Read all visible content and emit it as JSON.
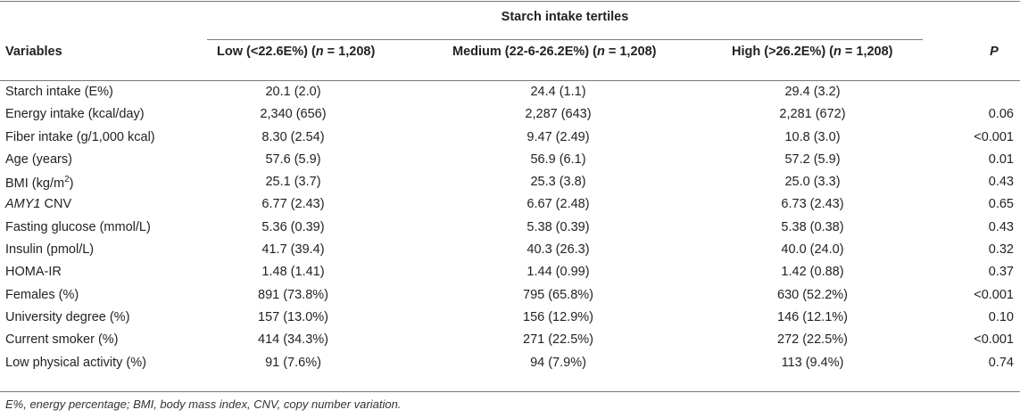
{
  "table": {
    "spanner_label": "Starch intake tertiles",
    "headers": {
      "variables": "Variables",
      "low_prefix": "Low (<22.6E%) (",
      "low_n": "n",
      "low_suffix": " = 1,208)",
      "medium_prefix": "Medium (22-6-26.2E%) (",
      "medium_n": "n",
      "medium_suffix": " = 1,208)",
      "high_prefix": "High (>26.2E%) (",
      "high_n": "n",
      "high_suffix": " = 1,208)",
      "p": "P"
    },
    "rows": [
      {
        "variable": "Starch intake (E%)",
        "low": "20.1 (2.0)",
        "medium": "24.4 (1.1)",
        "high": "29.4 (3.2)",
        "p": ""
      },
      {
        "variable": "Energy intake (kcal/day)",
        "low": "2,340 (656)",
        "medium": "2,287 (643)",
        "high": "2,281 (672)",
        "p": "0.06"
      },
      {
        "variable": "Fiber intake (g/1,000 kcal)",
        "low": "8.30 (2.54)",
        "medium": "9.47 (2.49)",
        "high": "10.8 (3.0)",
        "p": "<0.001"
      },
      {
        "variable": "Age (years)",
        "low": "57.6 (5.9)",
        "medium": "56.9 (6.1)",
        "high": "57.2 (5.9)",
        "p": "0.01"
      },
      {
        "variable": "BMI (kg/m",
        "variable_sup": "2",
        "variable_after": ")",
        "low": "25.1 (3.7)",
        "medium": "25.3 (3.8)",
        "high": "25.0 (3.3)",
        "p": "0.43"
      },
      {
        "variable_italic": "AMY1",
        "variable": " CNV",
        "low": "6.77 (2.43)",
        "medium": "6.67 (2.48)",
        "high": "6.73 (2.43)",
        "p": "0.65"
      },
      {
        "variable": "Fasting glucose (mmol/L)",
        "low": "5.36 (0.39)",
        "medium": "5.38 (0.39)",
        "high": "5.38 (0.38)",
        "p": "0.43"
      },
      {
        "variable": "Insulin (pmol/L)",
        "low": "41.7 (39.4)",
        "medium": "40.3 (26.3)",
        "high": "40.0 (24.0)",
        "p": "0.32"
      },
      {
        "variable": "HOMA-IR",
        "low": "1.48 (1.41)",
        "medium": "1.44 (0.99)",
        "high": "1.42 (0.88)",
        "p": "0.37"
      },
      {
        "variable": "Females (%)",
        "low": "891 (73.8%)",
        "medium": "795 (65.8%)",
        "high": "630 (52.2%)",
        "p": "<0.001"
      },
      {
        "variable": "University degree (%)",
        "low": "157 (13.0%)",
        "medium": "156 (12.9%)",
        "high": "146 (12.1%)",
        "p": "0.10"
      },
      {
        "variable": "Current smoker (%)",
        "low": "414 (34.3%)",
        "medium": "271 (22.5%)",
        "high": "272 (22.5%)",
        "p": "<0.001"
      },
      {
        "variable": "Low physical activity (%)",
        "low": "91 (7.6%)",
        "medium": "94 (7.9%)",
        "high": "113 (9.4%)",
        "p": "0.74"
      }
    ],
    "footnote": "E%, energy percentage; BMI, body mass index, CNV, copy number variation."
  }
}
